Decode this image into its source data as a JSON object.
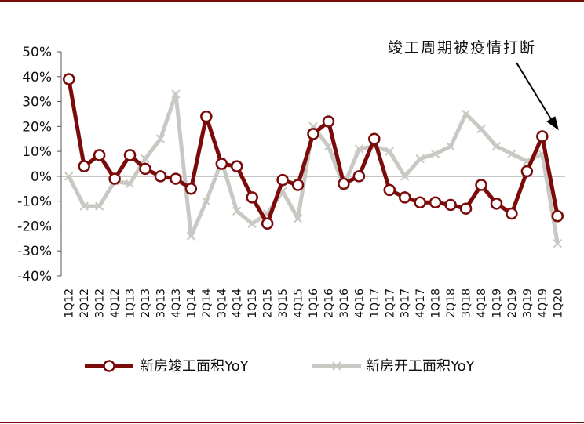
{
  "chart_data": {
    "type": "line",
    "categories": [
      "1Q12",
      "2Q12",
      "3Q12",
      "4Q12",
      "1Q13",
      "2Q13",
      "3Q13",
      "4Q13",
      "1Q14",
      "2Q14",
      "3Q14",
      "4Q14",
      "1Q15",
      "2Q15",
      "3Q15",
      "4Q15",
      "1Q16",
      "2Q16",
      "3Q16",
      "4Q16",
      "1Q17",
      "2Q17",
      "3Q17",
      "4Q17",
      "1Q18",
      "2Q18",
      "3Q18",
      "4Q18",
      "1Q19",
      "2Q19",
      "3Q19",
      "4Q19",
      "1Q20"
    ],
    "series": [
      {
        "name": "新房竣工面积YoY",
        "color": "#7b0a0a",
        "marker": "circle",
        "values": [
          39,
          4,
          8.5,
          -1,
          8.5,
          3,
          0,
          -1,
          -5,
          24,
          5,
          4,
          -8.5,
          -19,
          -1.5,
          -3.5,
          17,
          22,
          -3,
          0,
          15,
          -5.5,
          -8.5,
          -10.5,
          -10.5,
          -11.5,
          -13,
          -3.5,
          -11,
          -15,
          2,
          16,
          -16
        ]
      },
      {
        "name": "新房开工面积YoY",
        "color": "#c9c8c2",
        "marker": "x",
        "values": [
          0,
          -12,
          -12,
          -2,
          -3,
          7,
          15,
          33,
          -24,
          -10,
          6,
          -14,
          -19,
          -15,
          -6,
          -17,
          20,
          12,
          -4,
          11,
          12,
          10,
          0,
          7,
          9,
          12,
          25,
          19,
          12,
          9,
          6,
          9,
          -27
        ]
      }
    ],
    "yticks": [
      "50%",
      "40%",
      "30%",
      "20%",
      "10%",
      "0%",
      "-10%",
      "-20%",
      "-30%",
      "-40%"
    ],
    "ylim": [
      -40,
      50
    ],
    "annotation": "竣工周期被疫情打断",
    "legend_position": "bottom"
  }
}
